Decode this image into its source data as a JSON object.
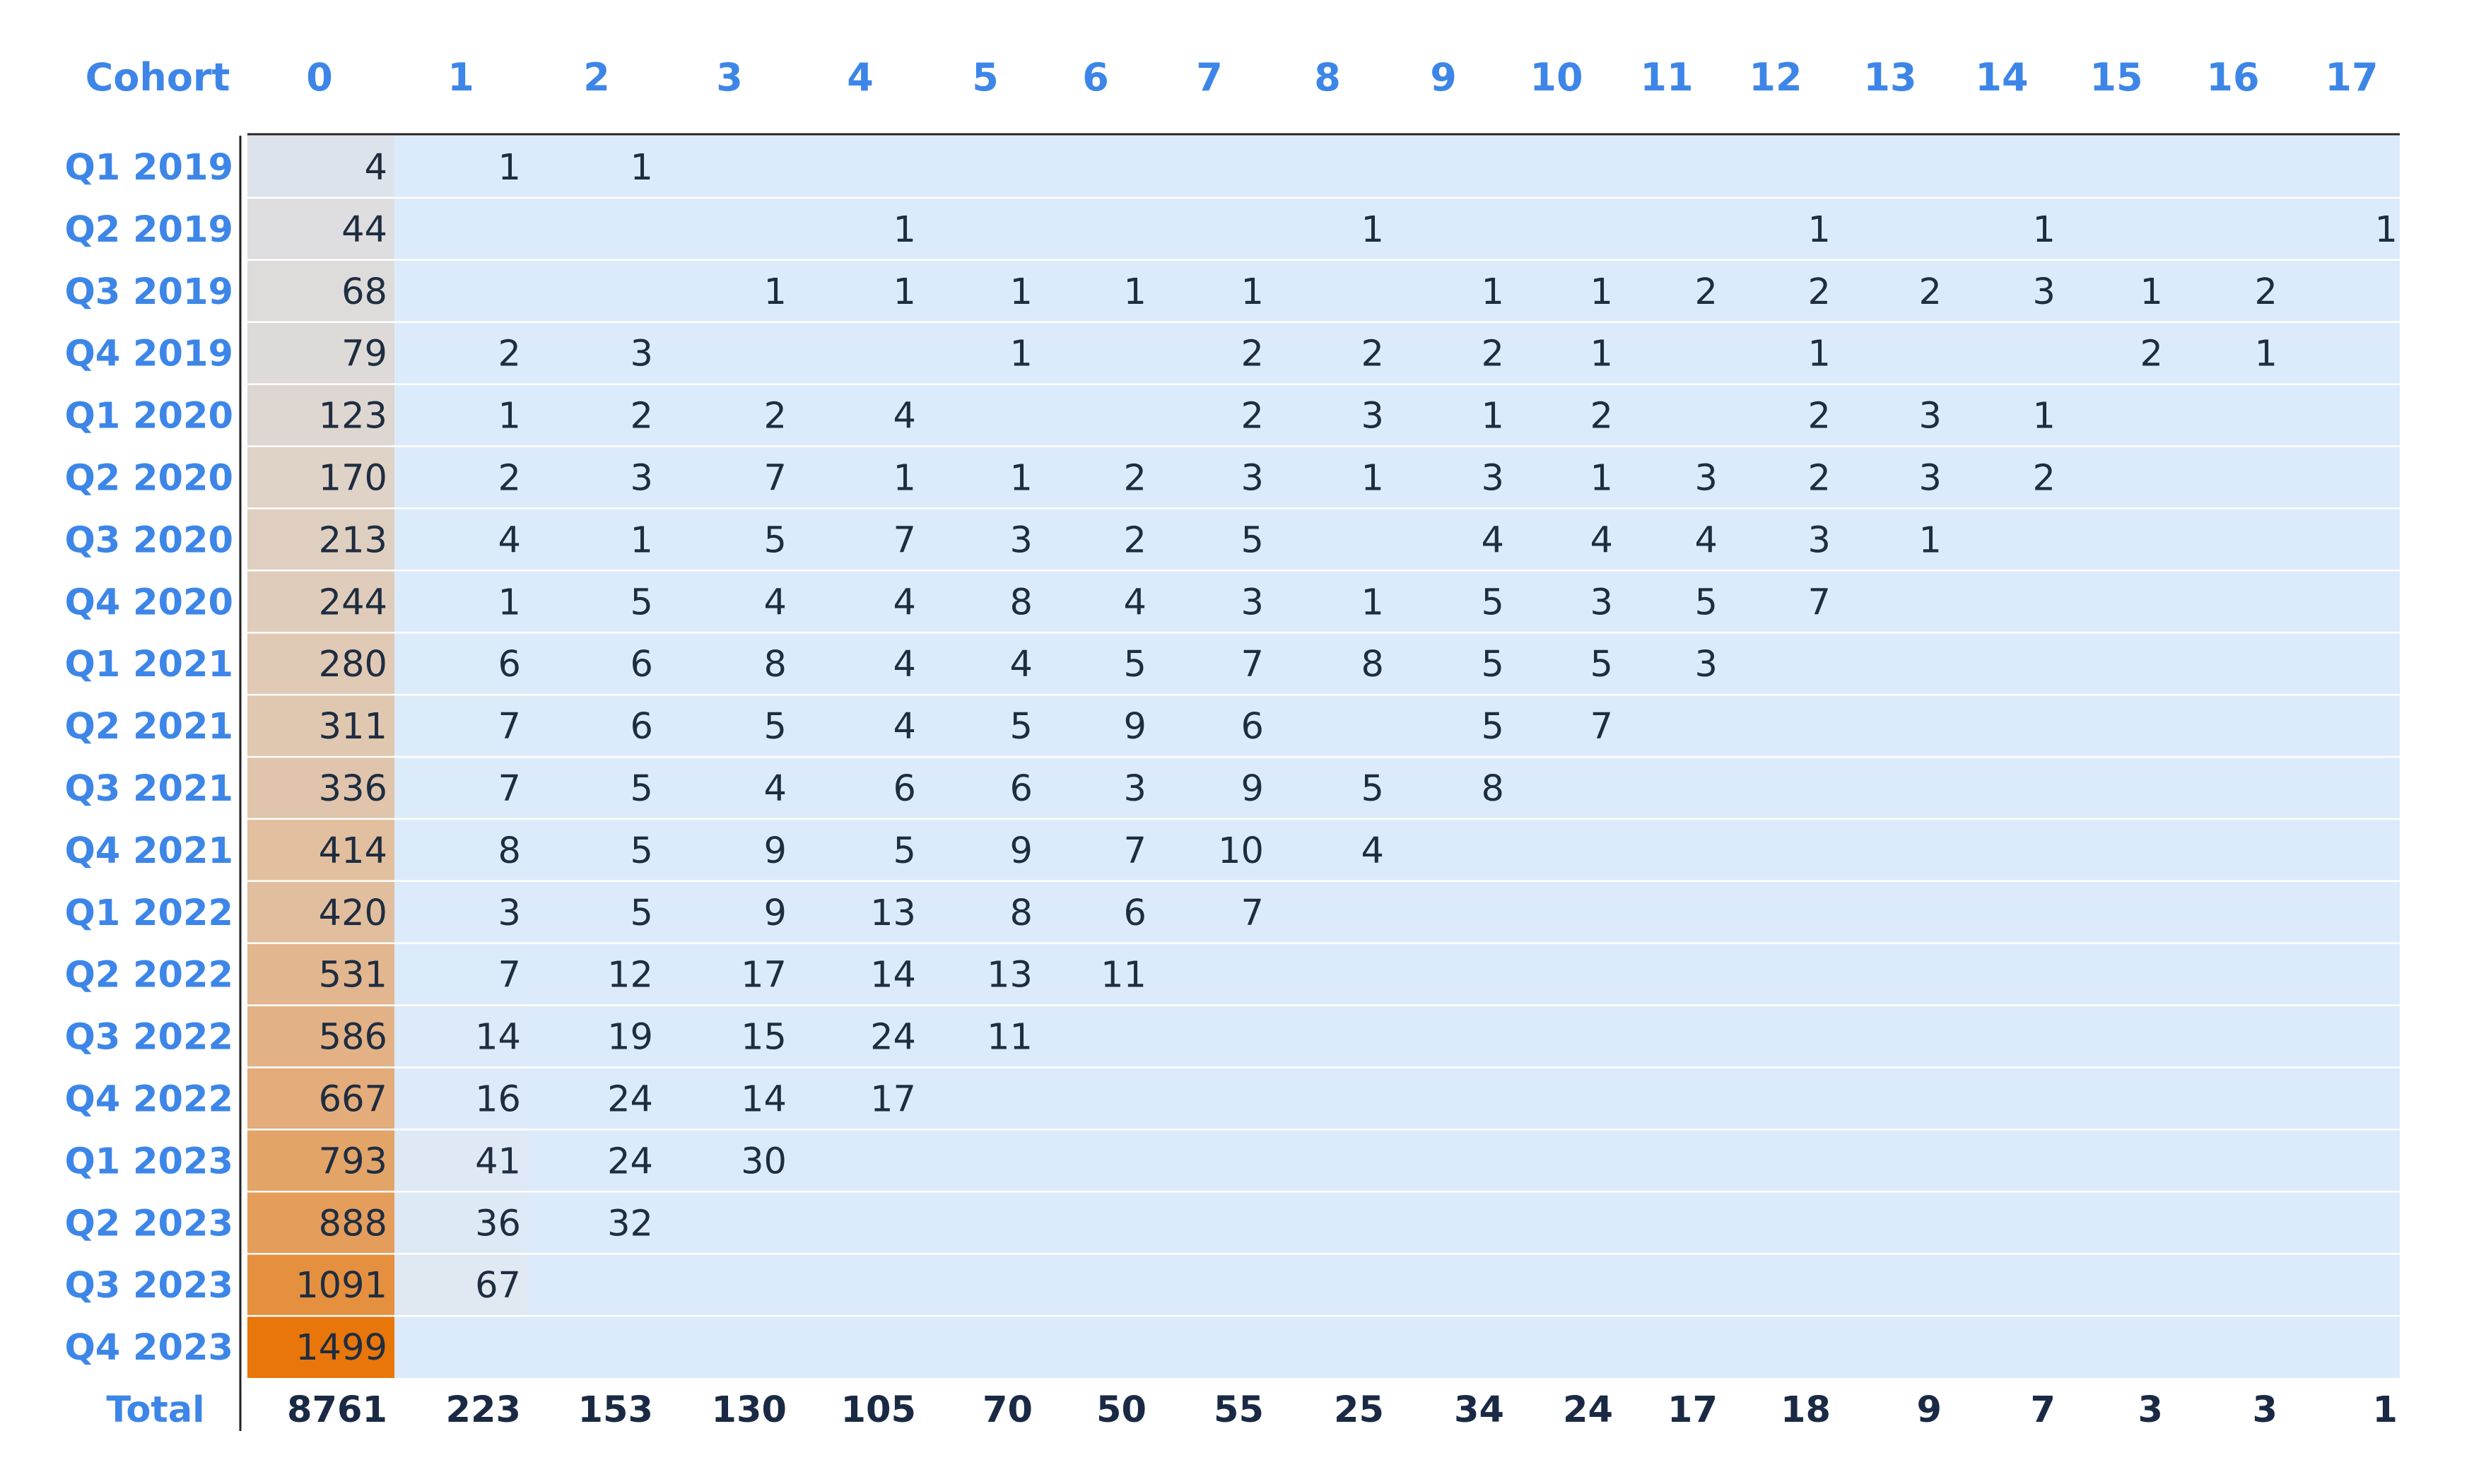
{
  "chart_data": {
    "type": "table",
    "title": "",
    "row_header": "Cohort",
    "columns": [
      "0",
      "1",
      "2",
      "3",
      "4",
      "5",
      "6",
      "7",
      "8",
      "9",
      "10",
      "11",
      "12",
      "13",
      "14",
      "15",
      "16",
      "17"
    ],
    "rows": [
      {
        "label": "Q1 2019",
        "values": [
          4,
          1,
          1,
          null,
          null,
          null,
          null,
          null,
          null,
          null,
          null,
          null,
          null,
          null,
          null,
          null,
          null,
          null
        ]
      },
      {
        "label": "Q2 2019",
        "values": [
          44,
          null,
          null,
          null,
          1,
          null,
          null,
          null,
          1,
          null,
          null,
          null,
          1,
          null,
          1,
          null,
          null,
          1
        ]
      },
      {
        "label": "Q3 2019",
        "values": [
          68,
          null,
          null,
          1,
          1,
          1,
          1,
          1,
          null,
          1,
          1,
          2,
          2,
          2,
          3,
          1,
          2,
          null
        ]
      },
      {
        "label": "Q4 2019",
        "values": [
          79,
          2,
          3,
          null,
          null,
          1,
          null,
          2,
          2,
          2,
          1,
          null,
          1,
          null,
          null,
          2,
          1,
          null
        ]
      },
      {
        "label": "Q1 2020",
        "values": [
          123,
          1,
          2,
          2,
          4,
          null,
          null,
          2,
          3,
          1,
          2,
          null,
          2,
          3,
          1,
          null,
          null,
          null
        ]
      },
      {
        "label": "Q2 2020",
        "values": [
          170,
          2,
          3,
          7,
          1,
          1,
          2,
          3,
          1,
          3,
          1,
          3,
          2,
          3,
          2,
          null,
          null,
          null
        ]
      },
      {
        "label": "Q3 2020",
        "values": [
          213,
          4,
          1,
          5,
          7,
          3,
          2,
          5,
          null,
          4,
          4,
          4,
          3,
          1,
          null,
          null,
          null,
          null
        ]
      },
      {
        "label": "Q4 2020",
        "values": [
          244,
          1,
          5,
          4,
          4,
          8,
          4,
          3,
          1,
          5,
          3,
          5,
          7,
          null,
          null,
          null,
          null,
          null
        ]
      },
      {
        "label": "Q1 2021",
        "values": [
          280,
          6,
          6,
          8,
          4,
          4,
          5,
          7,
          8,
          5,
          5,
          3,
          null,
          null,
          null,
          null,
          null,
          null
        ]
      },
      {
        "label": "Q2 2021",
        "values": [
          311,
          7,
          6,
          5,
          4,
          5,
          9,
          6,
          null,
          5,
          7,
          null,
          null,
          null,
          null,
          null,
          null,
          null
        ]
      },
      {
        "label": "Q3 2021",
        "values": [
          336,
          7,
          5,
          4,
          6,
          6,
          3,
          9,
          5,
          8,
          null,
          null,
          null,
          null,
          null,
          null,
          null,
          null
        ]
      },
      {
        "label": "Q4 2021",
        "values": [
          414,
          8,
          5,
          9,
          5,
          9,
          7,
          10,
          4,
          null,
          null,
          null,
          null,
          null,
          null,
          null,
          null,
          null
        ]
      },
      {
        "label": "Q1 2022",
        "values": [
          420,
          3,
          5,
          9,
          13,
          8,
          6,
          7,
          null,
          null,
          null,
          null,
          null,
          null,
          null,
          null,
          null,
          null
        ]
      },
      {
        "label": "Q2 2022",
        "values": [
          531,
          7,
          12,
          17,
          14,
          13,
          11,
          null,
          null,
          null,
          null,
          null,
          null,
          null,
          null,
          null,
          null,
          null
        ]
      },
      {
        "label": "Q3 2022",
        "values": [
          586,
          14,
          19,
          15,
          24,
          11,
          null,
          null,
          null,
          null,
          null,
          null,
          null,
          null,
          null,
          null,
          null,
          null
        ]
      },
      {
        "label": "Q4 2022",
        "values": [
          667,
          16,
          24,
          14,
          17,
          null,
          null,
          null,
          null,
          null,
          null,
          null,
          null,
          null,
          null,
          null,
          null,
          null
        ]
      },
      {
        "label": "Q1 2023",
        "values": [
          793,
          41,
          24,
          30,
          null,
          null,
          null,
          null,
          null,
          null,
          null,
          null,
          null,
          null,
          null,
          null,
          null,
          null
        ]
      },
      {
        "label": "Q2 2023",
        "values": [
          888,
          36,
          32,
          null,
          null,
          null,
          null,
          null,
          null,
          null,
          null,
          null,
          null,
          null,
          null,
          null,
          null,
          null
        ]
      },
      {
        "label": "Q3 2023",
        "values": [
          1091,
          67,
          null,
          null,
          null,
          null,
          null,
          null,
          null,
          null,
          null,
          null,
          null,
          null,
          null,
          null,
          null,
          null
        ]
      },
      {
        "label": "Q4 2023",
        "values": [
          1499,
          null,
          null,
          null,
          null,
          null,
          null,
          null,
          null,
          null,
          null,
          null,
          null,
          null,
          null,
          null,
          null,
          null
        ]
      }
    ],
    "total": {
      "label": "Total",
      "values": [
        8761,
        223,
        153,
        130,
        105,
        70,
        50,
        55,
        25,
        34,
        24,
        17,
        18,
        9,
        7,
        3,
        3,
        1
      ]
    },
    "color_scale": {
      "low": "#dcebfb",
      "high": "#e8760a",
      "base": "#dcebfb"
    },
    "colors": {
      "header_text": "#3d86e8",
      "cell_text": "#1f2d40",
      "total_text": "#1a2a44",
      "rule": "#222222",
      "row_divider": "#ffffff"
    }
  }
}
